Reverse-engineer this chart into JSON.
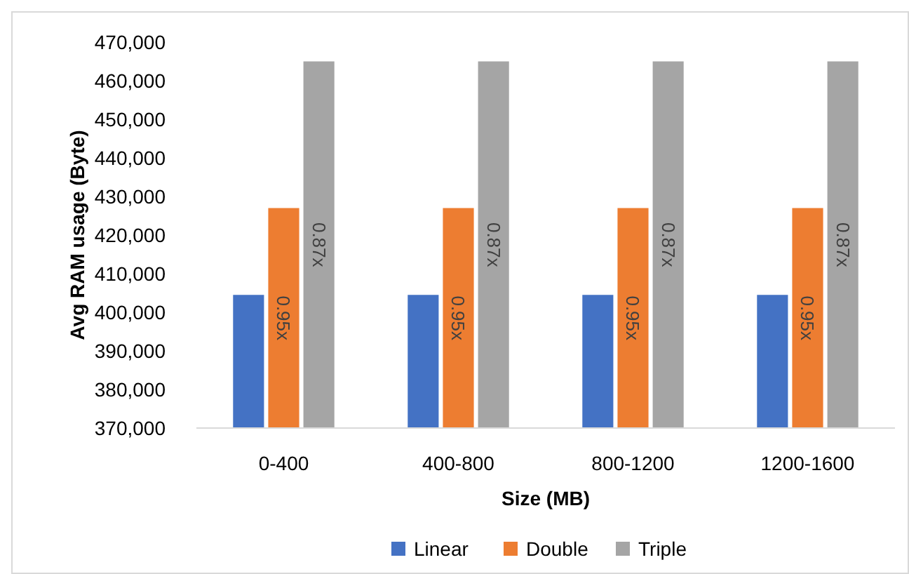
{
  "chart_data": {
    "type": "bar",
    "xlabel": "Size (MB)",
    "ylabel": "Avg RAM usage (Byte)",
    "categories": [
      "0-400",
      "400-800",
      "800-1200",
      "1200-1600"
    ],
    "series": [
      {
        "name": "Linear",
        "color": "#4472c4",
        "values": [
          404500,
          404500,
          404500,
          404500
        ]
      },
      {
        "name": "Double",
        "color": "#ed7d31",
        "values": [
          427000,
          427000,
          427000,
          427000
        ]
      },
      {
        "name": "Triple",
        "color": "#a5a5a5",
        "values": [
          465000,
          465000,
          465000,
          465000
        ]
      }
    ],
    "annotations": [
      "0.95x",
      "0.87x",
      "0.95x",
      "0.87x",
      "0.95x",
      "0.87x",
      "0.95x",
      "0.87x"
    ],
    "ylim": [
      370000,
      470000
    ],
    "yticks": [
      {
        "value": 370000,
        "label": "370,000"
      },
      {
        "value": 380000,
        "label": "380,000"
      },
      {
        "value": 390000,
        "label": "390,000"
      },
      {
        "value": 400000,
        "label": "400,000"
      },
      {
        "value": 410000,
        "label": "410,000"
      },
      {
        "value": 420000,
        "label": "420,000"
      },
      {
        "value": 430000,
        "label": "430,000"
      },
      {
        "value": 440000,
        "label": "440,000"
      },
      {
        "value": 450000,
        "label": "450,000"
      },
      {
        "value": 460000,
        "label": "460,000"
      },
      {
        "value": 470000,
        "label": "470,000"
      }
    ],
    "grid": false,
    "legend": "bottom"
  }
}
